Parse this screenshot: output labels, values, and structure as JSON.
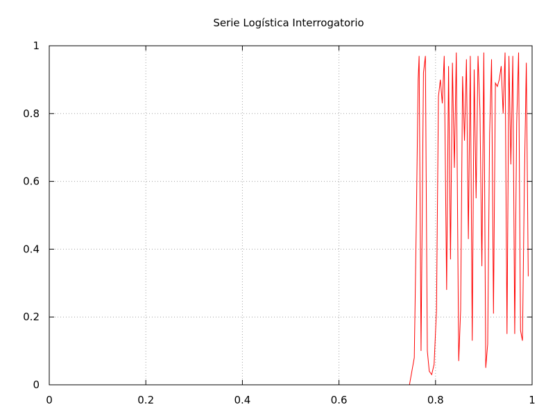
{
  "chart_data": {
    "type": "line",
    "title": "Serie Logística Interrogatorio",
    "xlabel": "",
    "ylabel": "",
    "xlim": [
      0,
      1
    ],
    "ylim": [
      0,
      1
    ],
    "grid": true,
    "x_ticks": [
      "0",
      "0.2",
      "0.4",
      "0.6",
      "0.8",
      "1"
    ],
    "y_ticks": [
      "0",
      "0.2",
      "0.4",
      "0.6",
      "0.8",
      "1"
    ],
    "series": [
      {
        "color": "#ff0000",
        "points": [
          [
            0.746,
            0.0
          ],
          [
            0.756,
            0.08
          ],
          [
            0.76,
            0.46
          ],
          [
            0.764,
            0.9
          ],
          [
            0.766,
            0.97
          ],
          [
            0.77,
            0.1
          ],
          [
            0.775,
            0.92
          ],
          [
            0.779,
            0.97
          ],
          [
            0.783,
            0.1
          ],
          [
            0.787,
            0.04
          ],
          [
            0.792,
            0.03
          ],
          [
            0.797,
            0.06
          ],
          [
            0.802,
            0.22
          ],
          [
            0.806,
            0.85
          ],
          [
            0.81,
            0.9
          ],
          [
            0.814,
            0.83
          ],
          [
            0.818,
            0.97
          ],
          [
            0.823,
            0.28
          ],
          [
            0.827,
            0.94
          ],
          [
            0.831,
            0.37
          ],
          [
            0.835,
            0.95
          ],
          [
            0.839,
            0.64
          ],
          [
            0.843,
            0.98
          ],
          [
            0.848,
            0.07
          ],
          [
            0.852,
            0.22
          ],
          [
            0.856,
            0.91
          ],
          [
            0.86,
            0.72
          ],
          [
            0.864,
            0.96
          ],
          [
            0.868,
            0.43
          ],
          [
            0.872,
            0.97
          ],
          [
            0.876,
            0.13
          ],
          [
            0.88,
            0.93
          ],
          [
            0.884,
            0.55
          ],
          [
            0.888,
            0.97
          ],
          [
            0.892,
            0.81
          ],
          [
            0.896,
            0.35
          ],
          [
            0.9,
            0.98
          ],
          [
            0.904,
            0.05
          ],
          [
            0.908,
            0.12
          ],
          [
            0.912,
            0.74
          ],
          [
            0.916,
            0.96
          ],
          [
            0.92,
            0.21
          ],
          [
            0.924,
            0.89
          ],
          [
            0.928,
            0.88
          ],
          [
            0.932,
            0.9
          ],
          [
            0.936,
            0.94
          ],
          [
            0.94,
            0.8
          ],
          [
            0.944,
            0.98
          ],
          [
            0.948,
            0.15
          ],
          [
            0.952,
            0.97
          ],
          [
            0.956,
            0.65
          ],
          [
            0.96,
            0.97
          ],
          [
            0.964,
            0.15
          ],
          [
            0.968,
            0.77
          ],
          [
            0.972,
            0.98
          ],
          [
            0.976,
            0.16
          ],
          [
            0.98,
            0.13
          ],
          [
            0.984,
            0.6
          ],
          [
            0.988,
            0.95
          ],
          [
            0.992,
            0.32
          ]
        ]
      }
    ]
  }
}
